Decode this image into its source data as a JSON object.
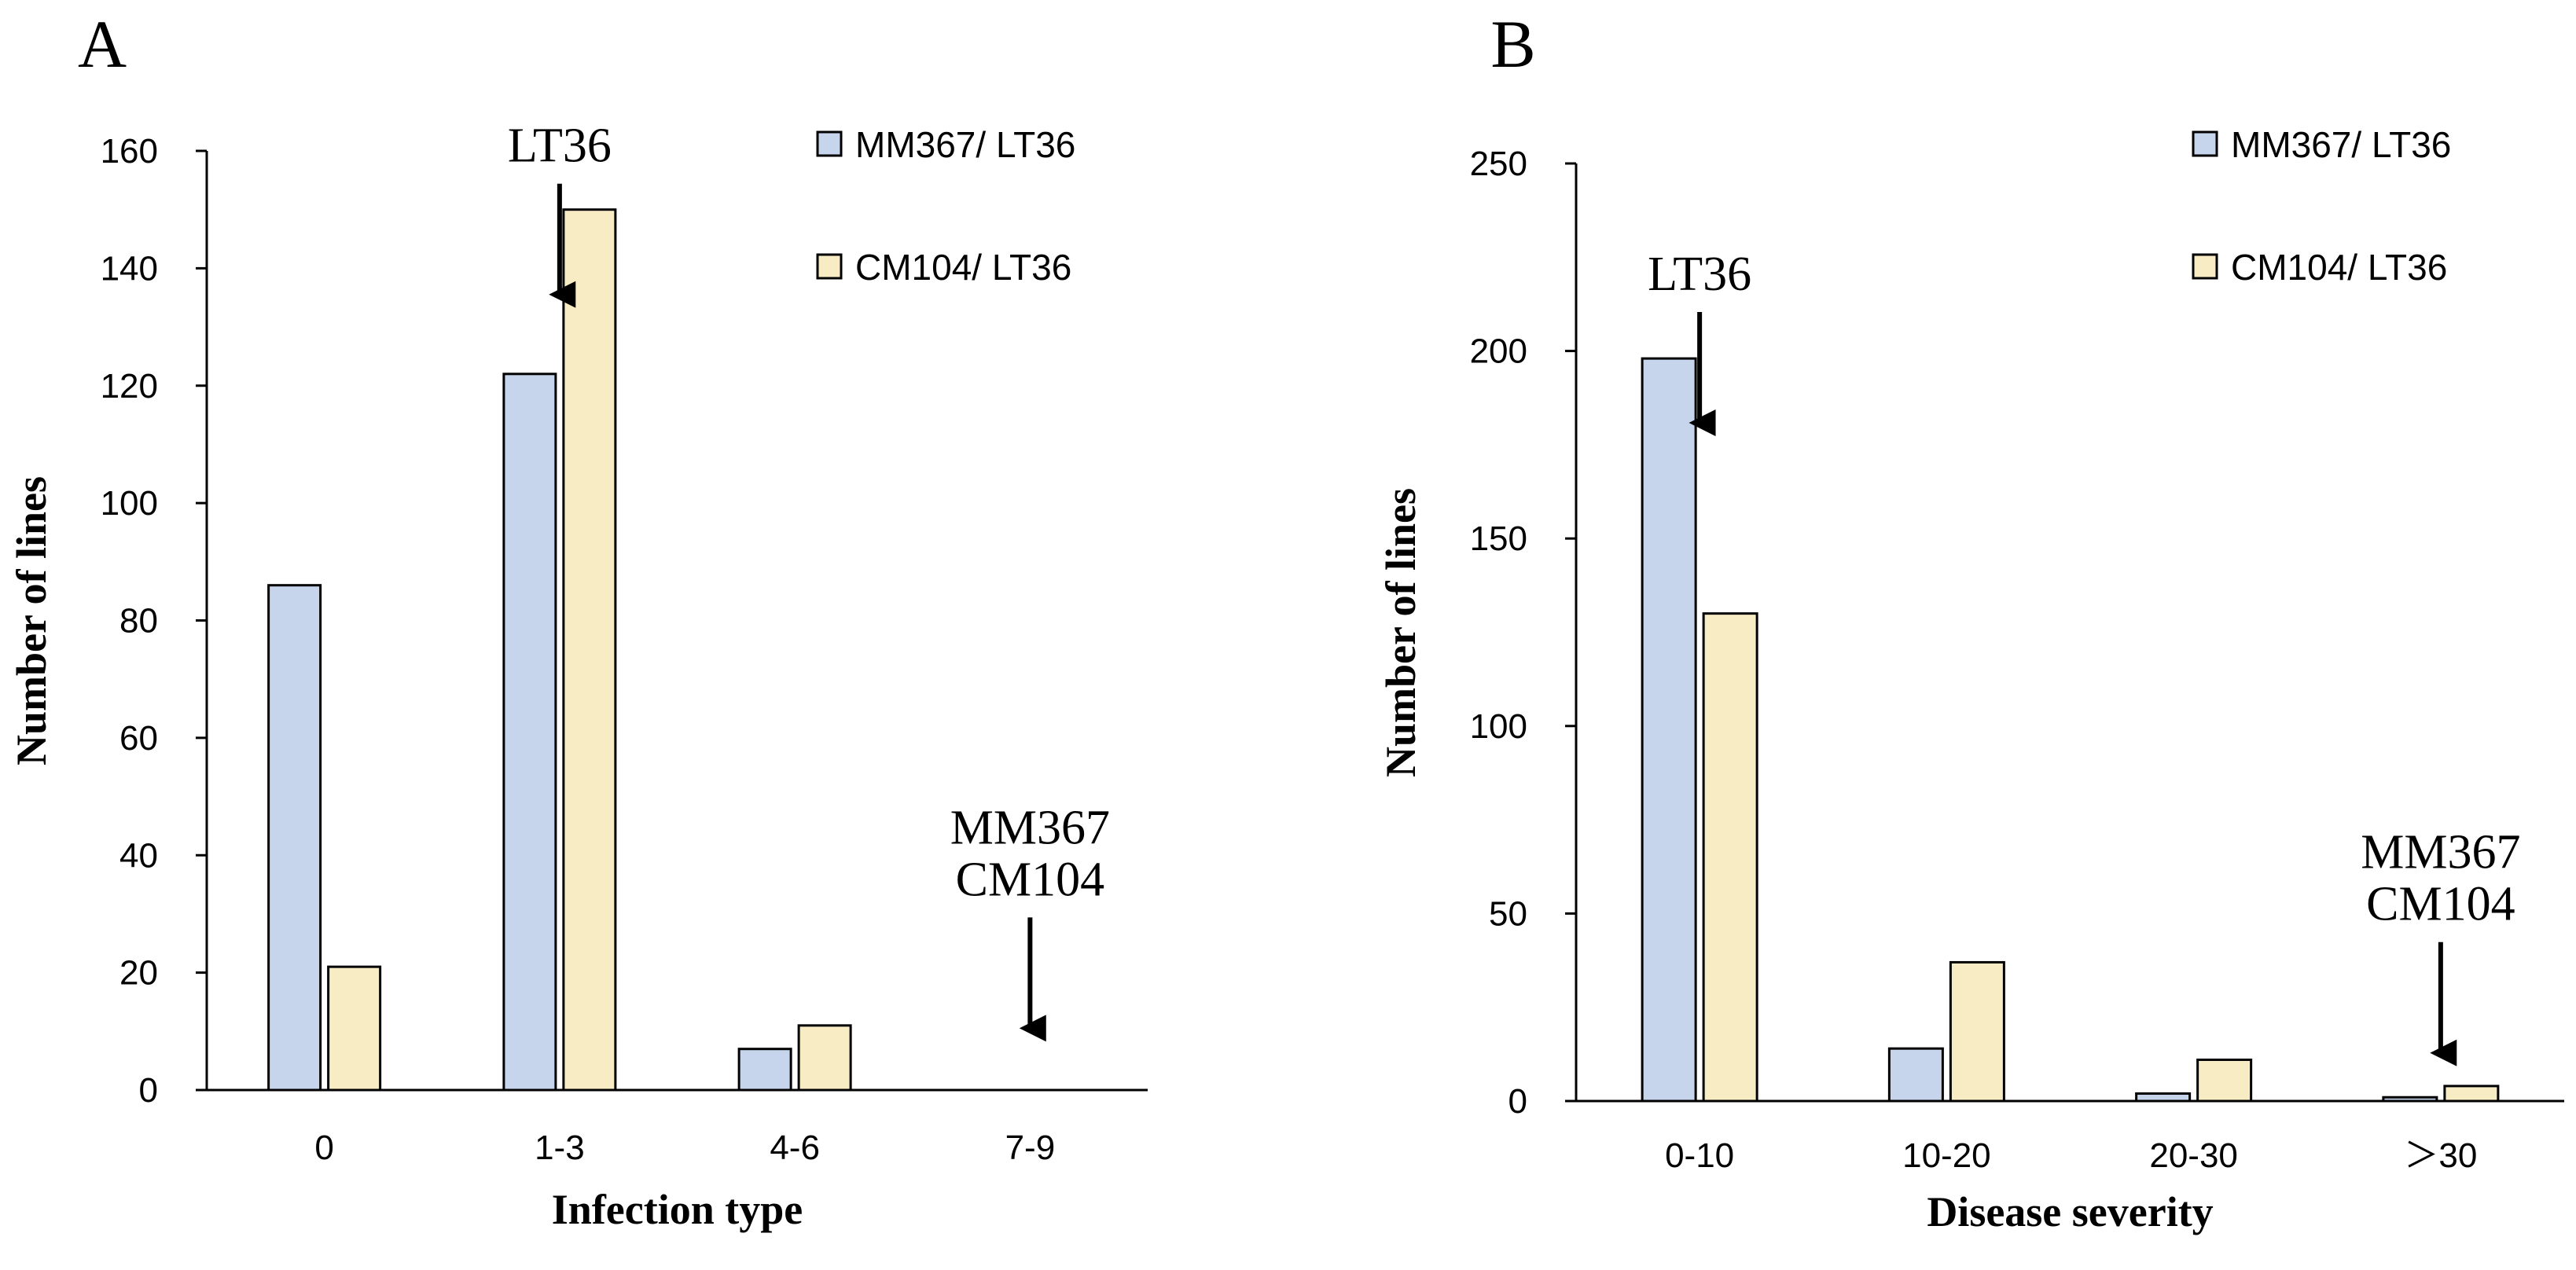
{
  "colors": {
    "series1": "#c6d4ec",
    "series2": "#f7ecc3"
  },
  "chart_data": [
    {
      "id": "A",
      "panel_label": "A",
      "type": "bar",
      "categories": [
        "0",
        "1-3",
        "4-6",
        "7-9"
      ],
      "series": [
        {
          "name": "MM367/ LT36",
          "values": [
            86,
            122,
            7,
            0
          ]
        },
        {
          "name": "CM104/ LT36",
          "values": [
            21,
            150,
            11,
            0
          ]
        }
      ],
      "xlabel": "Infection type",
      "ylabel": "Number of lines",
      "ylim": [
        0,
        160
      ],
      "yticks": [
        0,
        20,
        40,
        60,
        80,
        100,
        120,
        140,
        160
      ],
      "grid": false,
      "legend": "top-right",
      "annotations": [
        {
          "lines": [
            "LT36"
          ],
          "category": "1-3",
          "target_value": 135
        },
        {
          "lines": [
            "MM367",
            "CM104"
          ],
          "category": "7-9",
          "target_value": 10
        }
      ]
    },
    {
      "id": "B",
      "panel_label": "B",
      "type": "bar",
      "categories": [
        "0-10",
        "10-20",
        "20-30",
        "＞30"
      ],
      "series": [
        {
          "name": "MM367/ LT36",
          "values": [
            198,
            14,
            2,
            1
          ]
        },
        {
          "name": "CM104/ LT36",
          "values": [
            130,
            37,
            11,
            4
          ]
        }
      ],
      "xlabel": "Disease severity",
      "ylabel": "Number of lines",
      "ylim": [
        0,
        250
      ],
      "yticks": [
        0,
        50,
        100,
        150,
        200,
        250
      ],
      "grid": false,
      "legend": "top-right",
      "annotations": [
        {
          "lines": [
            "LT36"
          ],
          "category": "0-10",
          "target_value": 180
        },
        {
          "lines": [
            "MM367",
            "CM104"
          ],
          "category": "＞30",
          "target_value": 12
        }
      ]
    }
  ]
}
